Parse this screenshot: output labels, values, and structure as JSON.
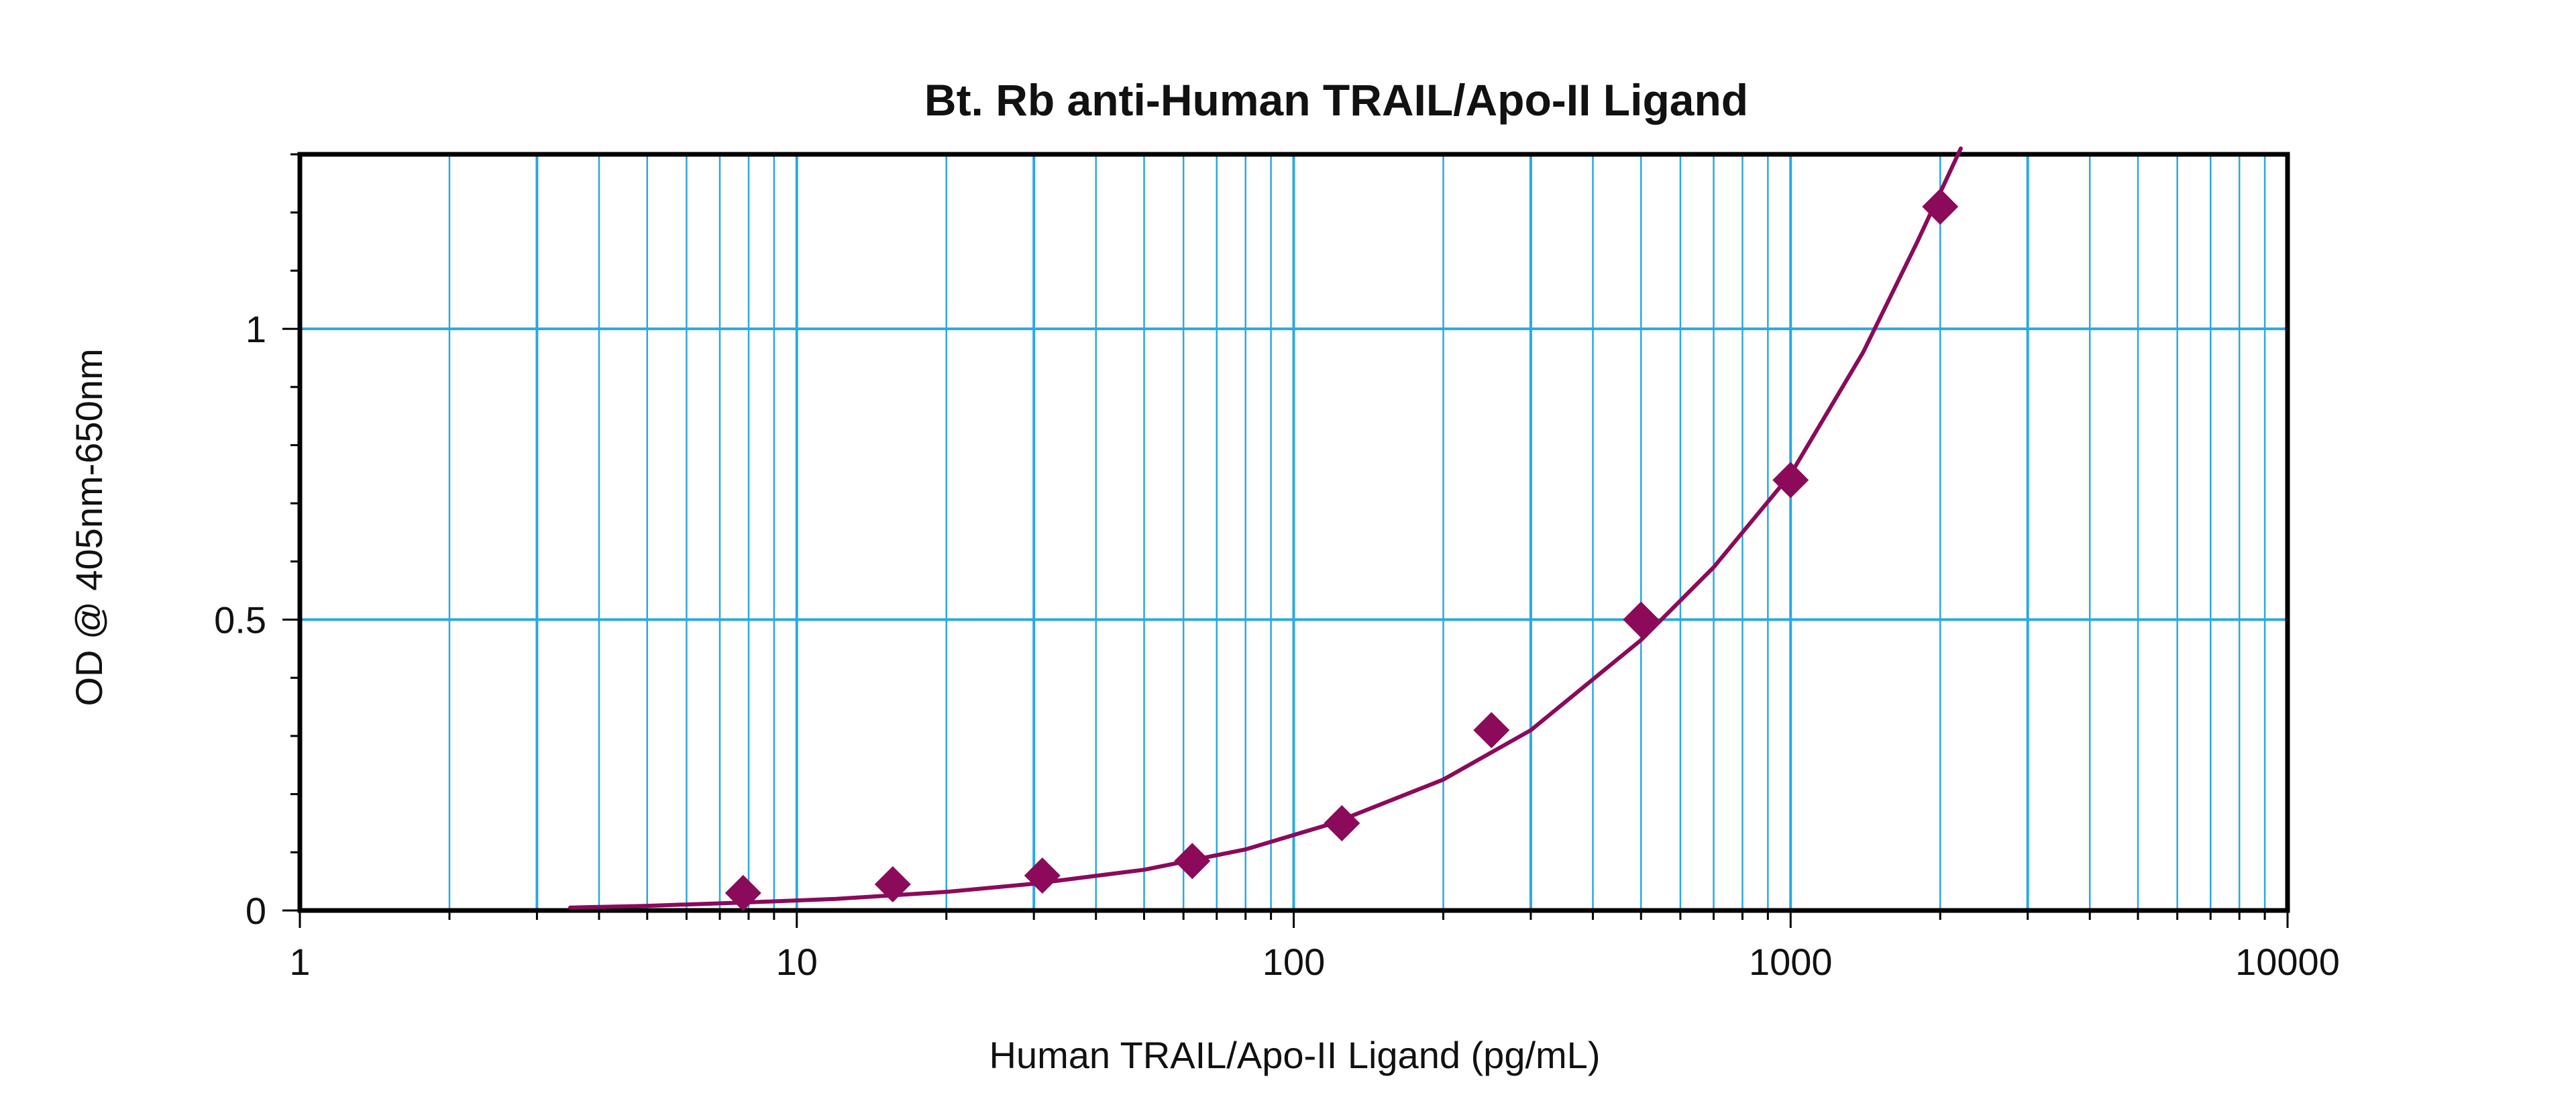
{
  "chart_data": {
    "type": "scatter",
    "title": "Bt. Rb anti-Human TRAIL/Apo-II Ligand",
    "xlabel": "Human TRAIL/Apo-II Ligand (pg/mL)",
    "ylabel": "OD @ 405nm-650nm",
    "x_scale": "log",
    "xlim": [
      1,
      10000
    ],
    "ylim": [
      0,
      1.3
    ],
    "x_ticks": [
      {
        "value": 1,
        "label": "1"
      },
      {
        "value": 10,
        "label": "10"
      },
      {
        "value": 100,
        "label": "100"
      },
      {
        "value": 1000,
        "label": "1000"
      },
      {
        "value": 10000,
        "label": "10000"
      }
    ],
    "y_ticks": [
      {
        "value": 0,
        "label": "0"
      },
      {
        "value": 0.5,
        "label": "0.5"
      },
      {
        "value": 1,
        "label": "1"
      }
    ],
    "grid": true,
    "legend": "none",
    "colors": {
      "series": "#8b0a5a",
      "grid": "#29a9e0",
      "axis": "#000000"
    },
    "series": [
      {
        "points": [
          {
            "x": 7.8,
            "y": 0.03
          },
          {
            "x": 15.6,
            "y": 0.045
          },
          {
            "x": 31.2,
            "y": 0.06
          },
          {
            "x": 62.5,
            "y": 0.085
          },
          {
            "x": 125,
            "y": 0.15
          },
          {
            "x": 250,
            "y": 0.31
          },
          {
            "x": 500,
            "y": 0.5
          },
          {
            "x": 1000,
            "y": 0.74
          },
          {
            "x": 2000,
            "y": 1.21
          }
        ],
        "fit_curve": {
          "x": [
            3.5,
            5,
            8,
            12,
            20,
            30,
            50,
            80,
            120,
            200,
            300,
            500,
            700,
            1000,
            1400,
            1800,
            2200
          ],
          "y": [
            0.005,
            0.008,
            0.014,
            0.02,
            0.032,
            0.046,
            0.07,
            0.105,
            0.15,
            0.225,
            0.31,
            0.465,
            0.59,
            0.75,
            0.96,
            1.15,
            1.31
          ]
        }
      }
    ]
  }
}
